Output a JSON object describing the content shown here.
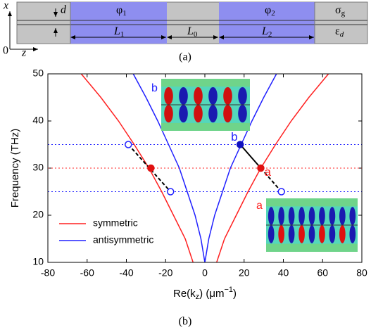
{
  "schematic": {
    "axis_x": "x",
    "axis_z": "z",
    "origin": "0",
    "thickness": "d",
    "phi1": {
      "base": "φ",
      "sub": "1"
    },
    "phi2": {
      "base": "φ",
      "sub": "2"
    },
    "L1": {
      "base": "L",
      "sub": "1"
    },
    "L0": {
      "base": "L",
      "sub": "0"
    },
    "L2": {
      "base": "L",
      "sub": "2"
    },
    "sigma": {
      "base": "σ",
      "sub": "g"
    },
    "eps": {
      "base": "ε",
      "sub": "d"
    },
    "caption": "(a)"
  },
  "chart_data": {
    "type": "line",
    "caption": "(b)",
    "ylabel": "Frequency (THz)",
    "xlabel": {
      "pre": "Re(k",
      "sub": "z",
      "mid": ") (μm",
      "sup": "−1",
      "post": ")"
    },
    "xlim": [
      -80,
      80
    ],
    "xticks": [
      -80,
      -60,
      -40,
      -20,
      0,
      20,
      40,
      60,
      80
    ],
    "ylim": [
      10,
      50
    ],
    "yticks": [
      10,
      20,
      30,
      40,
      50
    ],
    "grid": false,
    "legend": "lower left",
    "series": [
      {
        "name": "symmetric",
        "color": "#ff2020",
        "branches": [
          {
            "x": [
              6,
              10,
              16,
              22,
              28.5,
              36,
              44,
              53,
              63
            ],
            "y": [
              10,
              15,
              20,
              25,
              30,
              35,
              40,
              45,
              50
            ]
          },
          {
            "x": [
              -6,
              -10,
              -16,
              -22,
              -28.5,
              -36,
              -44,
              -53,
              -63
            ],
            "y": [
              10,
              15,
              20,
              25,
              30,
              35,
              40,
              45,
              50
            ]
          }
        ]
      },
      {
        "name": "antisymmetric",
        "color": "#2020ff",
        "branches": [
          {
            "x": [
              0,
              2,
              5,
              9,
              13,
              18.5,
              24,
              30,
              36.5
            ],
            "y": [
              10,
              15,
              20,
              25,
              30,
              35,
              40,
              45,
              50
            ]
          },
          {
            "x": [
              0,
              -2,
              -5,
              -9,
              -13,
              -18.5,
              -24,
              -30,
              -36.5
            ],
            "y": [
              10,
              15,
              20,
              25,
              30,
              35,
              40,
              45,
              50
            ]
          }
        ]
      }
    ],
    "hlines": [
      {
        "value": 25,
        "color": "#2020ff"
      },
      {
        "value": 30,
        "color": "#ff2020"
      },
      {
        "value": 35,
        "color": "#2020ff"
      }
    ],
    "segments": [
      {
        "x": [
          -39,
          -17.5
        ],
        "y": [
          35,
          25
        ],
        "dashed": true
      },
      {
        "x": [
          18,
          28.5
        ],
        "y": [
          35,
          30
        ],
        "dashed": false
      },
      {
        "x": [
          28.5,
          39
        ],
        "y": [
          30,
          25
        ],
        "dashed": true
      }
    ],
    "points": [
      {
        "x": -39,
        "y": 35,
        "color": "#2020ff",
        "filled": false
      },
      {
        "x": -27.5,
        "y": 30,
        "color": "#e01010",
        "filled": true
      },
      {
        "x": -17.5,
        "y": 25,
        "color": "#2020ff",
        "filled": false
      },
      {
        "x": 18,
        "y": 35,
        "color": "#1010c0",
        "filled": true
      },
      {
        "x": 28.5,
        "y": 30,
        "color": "#e01010",
        "filled": true
      },
      {
        "x": 39,
        "y": 25,
        "color": "#2020ff",
        "filled": false
      }
    ],
    "annotations": [
      {
        "text": "b",
        "x": 15,
        "y": 36.5,
        "color": "#2020ff"
      },
      {
        "text": "a",
        "x": 32,
        "y": 29,
        "color": "#ff2020"
      }
    ],
    "insets": [
      {
        "label": "b",
        "color": "#2020ff"
      },
      {
        "label": "a",
        "color": "#ff2020"
      }
    ]
  }
}
